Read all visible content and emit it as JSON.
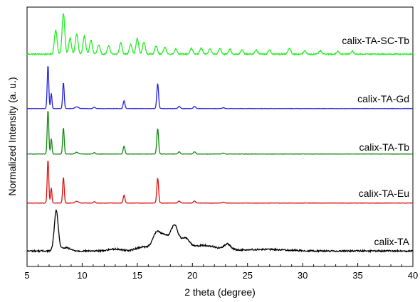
{
  "chart_data": {
    "type": "line",
    "xlabel": "2 theta (degree)",
    "ylabel": "Normalized Intensity (a. u.)",
    "xlim": [
      5,
      40
    ],
    "xticks": [
      5,
      10,
      15,
      20,
      25,
      30,
      35,
      40
    ],
    "grid": false,
    "series": [
      {
        "name": "calix-TA-SC-Tb",
        "color": "#22ee22",
        "offset": 4,
        "baseline": 0.05,
        "noise": 0.015,
        "peaks": [
          [
            7.6,
            0.6,
            0.12
          ],
          [
            8.3,
            1.0,
            0.12
          ],
          [
            8.9,
            0.4,
            0.12
          ],
          [
            9.5,
            0.5,
            0.12
          ],
          [
            10.2,
            0.45,
            0.12
          ],
          [
            10.8,
            0.35,
            0.12
          ],
          [
            11.5,
            0.22,
            0.12
          ],
          [
            12.4,
            0.2,
            0.12
          ],
          [
            13.5,
            0.28,
            0.12
          ],
          [
            14.4,
            0.25,
            0.12
          ],
          [
            15.0,
            0.38,
            0.12
          ],
          [
            15.6,
            0.3,
            0.12
          ],
          [
            16.7,
            0.2,
            0.12
          ],
          [
            17.5,
            0.18,
            0.12
          ],
          [
            18.5,
            0.13,
            0.12
          ],
          [
            19.9,
            0.14,
            0.12
          ],
          [
            20.8,
            0.16,
            0.12
          ],
          [
            21.6,
            0.12,
            0.12
          ],
          [
            22.5,
            0.14,
            0.12
          ],
          [
            23.4,
            0.12,
            0.12
          ],
          [
            24.5,
            0.1,
            0.12
          ],
          [
            25.8,
            0.1,
            0.12
          ],
          [
            27.0,
            0.1,
            0.12
          ],
          [
            28.8,
            0.15,
            0.12
          ],
          [
            30.2,
            0.08,
            0.12
          ],
          [
            31.6,
            0.08,
            0.12
          ],
          [
            33.2,
            0.07,
            0.12
          ],
          [
            34.5,
            0.07,
            0.12
          ]
        ]
      },
      {
        "name": "calix-TA-Gd",
        "color": "#2222dd",
        "offset": 3,
        "baseline": 0.02,
        "noise": 0.004,
        "peaks": [
          [
            6.9,
            1.0,
            0.07
          ],
          [
            7.2,
            0.35,
            0.06
          ],
          [
            8.3,
            0.6,
            0.07
          ],
          [
            9.5,
            0.04,
            0.15
          ],
          [
            11.1,
            0.03,
            0.1
          ],
          [
            13.8,
            0.18,
            0.08
          ],
          [
            16.85,
            0.58,
            0.08
          ],
          [
            18.8,
            0.05,
            0.1
          ],
          [
            20.2,
            0.05,
            0.1
          ],
          [
            22.8,
            0.02,
            0.1
          ]
        ]
      },
      {
        "name": "calix-TA-Tb",
        "color": "#118811",
        "offset": 2,
        "baseline": 0.02,
        "noise": 0.004,
        "peaks": [
          [
            6.9,
            1.0,
            0.07
          ],
          [
            7.2,
            0.35,
            0.06
          ],
          [
            8.3,
            0.6,
            0.07
          ],
          [
            9.5,
            0.04,
            0.15
          ],
          [
            11.1,
            0.03,
            0.1
          ],
          [
            13.8,
            0.18,
            0.08
          ],
          [
            16.85,
            0.58,
            0.08
          ],
          [
            18.8,
            0.05,
            0.1
          ],
          [
            20.2,
            0.05,
            0.1
          ],
          [
            22.8,
            0.02,
            0.1
          ]
        ]
      },
      {
        "name": "calix-TA-Eu",
        "color": "#dd1111",
        "offset": 1,
        "baseline": 0.02,
        "noise": 0.004,
        "peaks": [
          [
            6.9,
            1.0,
            0.07
          ],
          [
            7.2,
            0.35,
            0.06
          ],
          [
            8.3,
            0.6,
            0.07
          ],
          [
            9.5,
            0.04,
            0.15
          ],
          [
            11.1,
            0.03,
            0.1
          ],
          [
            13.8,
            0.18,
            0.08
          ],
          [
            16.85,
            0.58,
            0.08
          ],
          [
            18.8,
            0.05,
            0.1
          ],
          [
            20.2,
            0.05,
            0.1
          ],
          [
            22.8,
            0.02,
            0.1
          ]
        ]
      },
      {
        "name": "calix-TA",
        "color": "#000000",
        "offset": 0,
        "baseline": 0.05,
        "noise": 0.02,
        "peaks": [
          [
            7.65,
            1.0,
            0.18
          ],
          [
            8.5,
            0.08,
            0.4
          ],
          [
            13.0,
            0.05,
            0.6
          ],
          [
            15.5,
            0.1,
            0.6
          ],
          [
            16.7,
            0.3,
            0.35
          ],
          [
            17.5,
            0.38,
            0.6
          ],
          [
            18.4,
            0.5,
            0.3
          ],
          [
            19.3,
            0.28,
            0.4
          ],
          [
            21.0,
            0.14,
            1.2
          ],
          [
            23.2,
            0.14,
            0.3
          ],
          [
            26.5,
            0.04,
            2.0
          ]
        ]
      }
    ]
  }
}
